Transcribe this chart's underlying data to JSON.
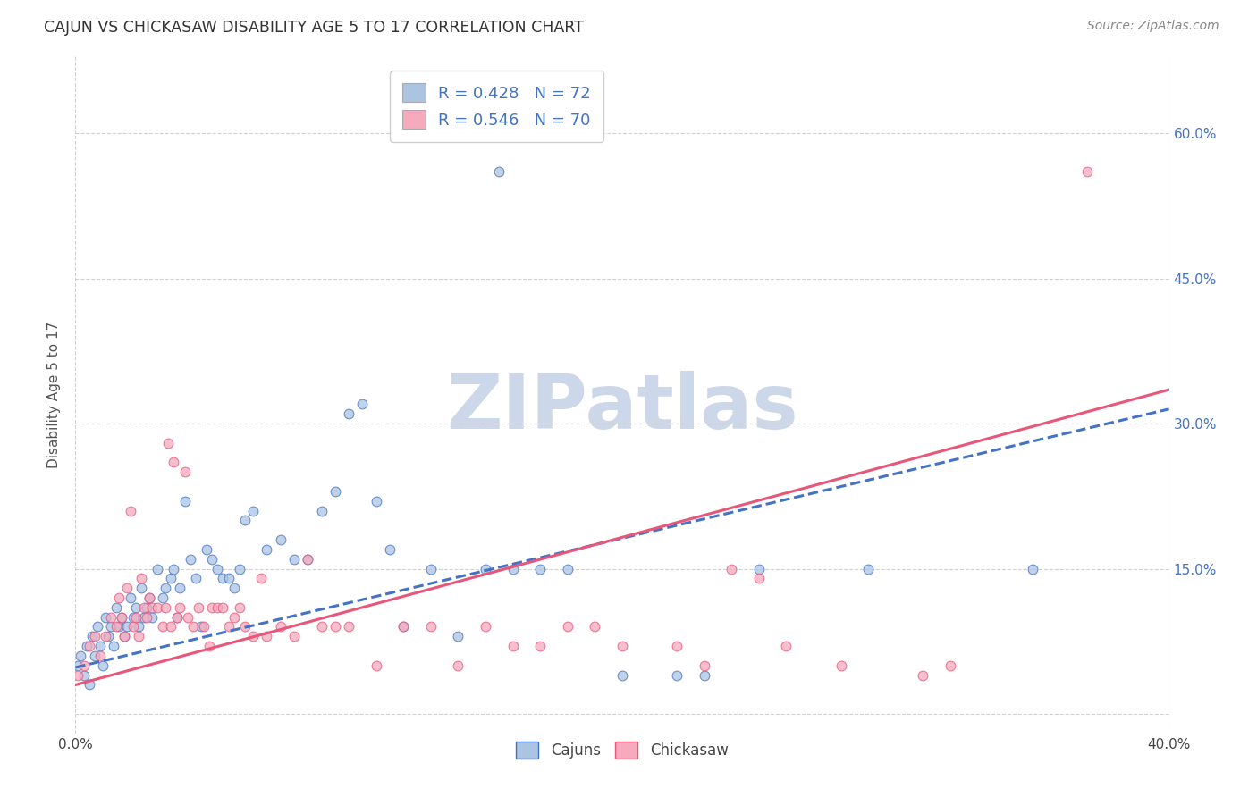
{
  "title": "CAJUN VS CHICKASAW DISABILITY AGE 5 TO 17 CORRELATION CHART",
  "source": "Source: ZipAtlas.com",
  "ylabel": "Disability Age 5 to 17",
  "xlim": [
    0.0,
    0.4
  ],
  "ylim": [
    -0.02,
    0.68
  ],
  "xticks": [
    0.0,
    0.4
  ],
  "yticks": [
    0.0,
    0.15,
    0.3,
    0.45,
    0.6
  ],
  "xticklabels": [
    "0.0%",
    "40.0%"
  ],
  "yticklabels_right": [
    "",
    "15.0%",
    "30.0%",
    "45.0%",
    "60.0%"
  ],
  "cajun_R": 0.428,
  "cajun_N": 72,
  "chickasaw_R": 0.546,
  "chickasaw_N": 70,
  "cajun_color": "#aac4e2",
  "chickasaw_color": "#f5aabe",
  "cajun_line_color": "#4472c4",
  "chickasaw_line_color": "#e8567a",
  "cajun_trendline": [
    0.0,
    0.4,
    0.048,
    0.315
  ],
  "chickasaw_trendline": [
    0.0,
    0.4,
    0.03,
    0.335
  ],
  "background_color": "#ffffff",
  "grid_color": "#cccccc",
  "watermark_text": "ZIPatlas",
  "watermark_color": "#ccd8ea",
  "cajun_points": [
    [
      0.001,
      0.05
    ],
    [
      0.002,
      0.06
    ],
    [
      0.003,
      0.04
    ],
    [
      0.004,
      0.07
    ],
    [
      0.005,
      0.03
    ],
    [
      0.006,
      0.08
    ],
    [
      0.007,
      0.06
    ],
    [
      0.008,
      0.09
    ],
    [
      0.009,
      0.07
    ],
    [
      0.01,
      0.05
    ],
    [
      0.011,
      0.1
    ],
    [
      0.012,
      0.08
    ],
    [
      0.013,
      0.09
    ],
    [
      0.014,
      0.07
    ],
    [
      0.015,
      0.11
    ],
    [
      0.016,
      0.09
    ],
    [
      0.017,
      0.1
    ],
    [
      0.018,
      0.08
    ],
    [
      0.019,
      0.09
    ],
    [
      0.02,
      0.12
    ],
    [
      0.021,
      0.1
    ],
    [
      0.022,
      0.11
    ],
    [
      0.023,
      0.09
    ],
    [
      0.024,
      0.13
    ],
    [
      0.025,
      0.1
    ],
    [
      0.026,
      0.11
    ],
    [
      0.027,
      0.12
    ],
    [
      0.028,
      0.1
    ],
    [
      0.03,
      0.15
    ],
    [
      0.032,
      0.12
    ],
    [
      0.033,
      0.13
    ],
    [
      0.035,
      0.14
    ],
    [
      0.036,
      0.15
    ],
    [
      0.037,
      0.1
    ],
    [
      0.038,
      0.13
    ],
    [
      0.04,
      0.22
    ],
    [
      0.042,
      0.16
    ],
    [
      0.044,
      0.14
    ],
    [
      0.046,
      0.09
    ],
    [
      0.048,
      0.17
    ],
    [
      0.05,
      0.16
    ],
    [
      0.052,
      0.15
    ],
    [
      0.054,
      0.14
    ],
    [
      0.056,
      0.14
    ],
    [
      0.058,
      0.13
    ],
    [
      0.06,
      0.15
    ],
    [
      0.062,
      0.2
    ],
    [
      0.065,
      0.21
    ],
    [
      0.07,
      0.17
    ],
    [
      0.075,
      0.18
    ],
    [
      0.08,
      0.16
    ],
    [
      0.085,
      0.16
    ],
    [
      0.09,
      0.21
    ],
    [
      0.095,
      0.23
    ],
    [
      0.1,
      0.31
    ],
    [
      0.105,
      0.32
    ],
    [
      0.11,
      0.22
    ],
    [
      0.115,
      0.17
    ],
    [
      0.12,
      0.09
    ],
    [
      0.13,
      0.15
    ],
    [
      0.14,
      0.08
    ],
    [
      0.15,
      0.15
    ],
    [
      0.16,
      0.15
    ],
    [
      0.17,
      0.15
    ],
    [
      0.18,
      0.15
    ],
    [
      0.2,
      0.04
    ],
    [
      0.22,
      0.04
    ],
    [
      0.23,
      0.04
    ],
    [
      0.25,
      0.15
    ],
    [
      0.155,
      0.56
    ],
    [
      0.29,
      0.15
    ],
    [
      0.35,
      0.15
    ]
  ],
  "chickasaw_points": [
    [
      0.001,
      0.04
    ],
    [
      0.003,
      0.05
    ],
    [
      0.005,
      0.07
    ],
    [
      0.007,
      0.08
    ],
    [
      0.009,
      0.06
    ],
    [
      0.011,
      0.08
    ],
    [
      0.013,
      0.1
    ],
    [
      0.015,
      0.09
    ],
    [
      0.016,
      0.12
    ],
    [
      0.017,
      0.1
    ],
    [
      0.018,
      0.08
    ],
    [
      0.019,
      0.13
    ],
    [
      0.02,
      0.21
    ],
    [
      0.021,
      0.09
    ],
    [
      0.022,
      0.1
    ],
    [
      0.023,
      0.08
    ],
    [
      0.024,
      0.14
    ],
    [
      0.025,
      0.11
    ],
    [
      0.026,
      0.1
    ],
    [
      0.027,
      0.12
    ],
    [
      0.028,
      0.11
    ],
    [
      0.03,
      0.11
    ],
    [
      0.032,
      0.09
    ],
    [
      0.033,
      0.11
    ],
    [
      0.034,
      0.28
    ],
    [
      0.035,
      0.09
    ],
    [
      0.036,
      0.26
    ],
    [
      0.037,
      0.1
    ],
    [
      0.038,
      0.11
    ],
    [
      0.04,
      0.25
    ],
    [
      0.041,
      0.1
    ],
    [
      0.043,
      0.09
    ],
    [
      0.045,
      0.11
    ],
    [
      0.047,
      0.09
    ],
    [
      0.049,
      0.07
    ],
    [
      0.05,
      0.11
    ],
    [
      0.052,
      0.11
    ],
    [
      0.054,
      0.11
    ],
    [
      0.056,
      0.09
    ],
    [
      0.058,
      0.1
    ],
    [
      0.06,
      0.11
    ],
    [
      0.062,
      0.09
    ],
    [
      0.065,
      0.08
    ],
    [
      0.068,
      0.14
    ],
    [
      0.07,
      0.08
    ],
    [
      0.075,
      0.09
    ],
    [
      0.08,
      0.08
    ],
    [
      0.085,
      0.16
    ],
    [
      0.09,
      0.09
    ],
    [
      0.095,
      0.09
    ],
    [
      0.1,
      0.09
    ],
    [
      0.11,
      0.05
    ],
    [
      0.12,
      0.09
    ],
    [
      0.13,
      0.09
    ],
    [
      0.14,
      0.05
    ],
    [
      0.15,
      0.09
    ],
    [
      0.16,
      0.07
    ],
    [
      0.17,
      0.07
    ],
    [
      0.18,
      0.09
    ],
    [
      0.19,
      0.09
    ],
    [
      0.2,
      0.07
    ],
    [
      0.22,
      0.07
    ],
    [
      0.23,
      0.05
    ],
    [
      0.24,
      0.15
    ],
    [
      0.25,
      0.14
    ],
    [
      0.26,
      0.07
    ],
    [
      0.28,
      0.05
    ],
    [
      0.31,
      0.04
    ],
    [
      0.37,
      0.56
    ],
    [
      0.32,
      0.05
    ]
  ]
}
